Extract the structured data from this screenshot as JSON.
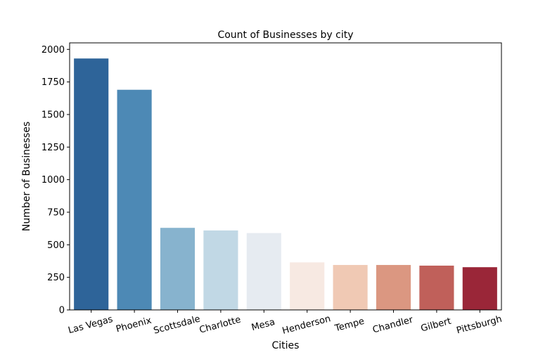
{
  "chart_data": {
    "type": "bar",
    "title": "Count of Businesses by city",
    "xlabel": "Cities",
    "ylabel": "Number of Businesses",
    "categories": [
      "Las Vegas",
      "Phoenix",
      "Scottsdale",
      "Charlotte",
      "Mesa",
      "Henderson",
      "Tempe",
      "Chandler",
      "Gilbert",
      "Pittsburgh"
    ],
    "values": [
      1930,
      1690,
      630,
      610,
      590,
      365,
      345,
      345,
      340,
      328
    ],
    "ylim": [
      0,
      2050
    ],
    "yticks": [
      0,
      250,
      500,
      750,
      1000,
      1250,
      1500,
      1750,
      2000
    ],
    "colors": [
      "#2e6499",
      "#4d89b5",
      "#87b3ce",
      "#c1d8e5",
      "#e6ebf1",
      "#f7e9e2",
      "#f0c9b4",
      "#db9781",
      "#c0605a",
      "#9a2638"
    ],
    "grid": false,
    "legend": "none"
  }
}
